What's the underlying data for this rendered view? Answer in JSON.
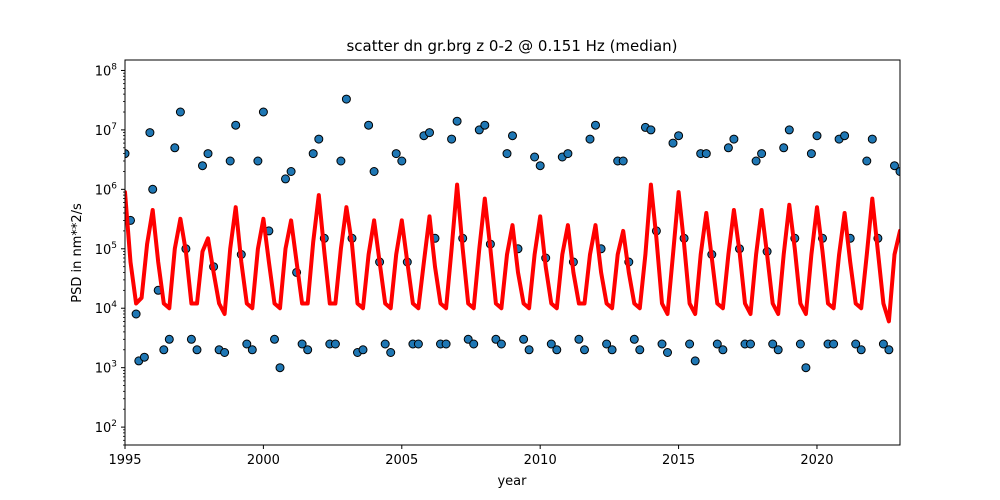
{
  "chart_data": {
    "type": "scatter",
    "title": "scatter dn gr.brg z 0-2 @ 0.151 Hz (median)",
    "xlabel": "year",
    "ylabel": "PSD in nm**2/s",
    "xlim": [
      1995,
      2023
    ],
    "ylim": [
      50,
      150000000
    ],
    "y_scale": "log",
    "grid": false,
    "x_ticks": [
      1995,
      2000,
      2005,
      2010,
      2015,
      2020
    ],
    "x_tick_labels": [
      "1995",
      "2000",
      "2005",
      "2010",
      "2015",
      "2020"
    ],
    "y_ticks": [
      100,
      1000,
      10000,
      100000,
      1000000,
      10000000,
      100000000
    ],
    "y_tick_labels": [
      {
        "base": "10",
        "exp": "2"
      },
      {
        "base": "10",
        "exp": "3"
      },
      {
        "base": "10",
        "exp": "4"
      },
      {
        "base": "10",
        "exp": "5"
      },
      {
        "base": "10",
        "exp": "6"
      },
      {
        "base": "10",
        "exp": "7"
      },
      {
        "base": "10",
        "exp": "8"
      }
    ],
    "series": [
      {
        "kind": "scatter",
        "color": "#1f77b4",
        "edge_color": "#000000",
        "x": [
          1995.0,
          1995.2,
          1995.4,
          1995.5,
          1995.7,
          1995.9,
          1996.0,
          1996.2,
          1996.4,
          1996.6,
          1996.8,
          1997.0,
          1997.2,
          1997.4,
          1997.6,
          1997.8,
          1998.0,
          1998.2,
          1998.4,
          1998.6,
          1998.8,
          1999.0,
          1999.2,
          1999.4,
          1999.6,
          1999.8,
          2000.0,
          2000.2,
          2000.4,
          2000.6,
          2000.8,
          2001.0,
          2001.2,
          2001.4,
          2001.6,
          2001.8,
          2002.0,
          2002.2,
          2002.4,
          2002.6,
          2002.8,
          2003.0,
          2003.2,
          2003.4,
          2003.6,
          2003.8,
          2004.0,
          2004.2,
          2004.4,
          2004.6,
          2004.8,
          2005.0,
          2005.2,
          2005.4,
          2005.6,
          2005.8,
          2006.0,
          2006.2,
          2006.4,
          2006.6,
          2006.8,
          2007.0,
          2007.2,
          2007.4,
          2007.6,
          2007.8,
          2008.0,
          2008.2,
          2008.4,
          2008.6,
          2008.8,
          2009.0,
          2009.2,
          2009.4,
          2009.6,
          2009.8,
          2010.0,
          2010.2,
          2010.4,
          2010.6,
          2010.8,
          2011.0,
          2011.2,
          2011.4,
          2011.6,
          2011.8,
          2012.0,
          2012.2,
          2012.4,
          2012.6,
          2012.8,
          2013.0,
          2013.2,
          2013.4,
          2013.6,
          2013.8,
          2014.0,
          2014.2,
          2014.4,
          2014.6,
          2014.8,
          2015.0,
          2015.2,
          2015.4,
          2015.6,
          2015.8,
          2016.0,
          2016.2,
          2016.4,
          2016.6,
          2016.8,
          2017.0,
          2017.2,
          2017.4,
          2017.6,
          2017.8,
          2018.0,
          2018.2,
          2018.4,
          2018.6,
          2018.8,
          2019.0,
          2019.2,
          2019.4,
          2019.6,
          2019.8,
          2020.0,
          2020.2,
          2020.4,
          2020.6,
          2020.8,
          2021.0,
          2021.2,
          2021.4,
          2021.6,
          2021.8,
          2022.0,
          2022.2,
          2022.4,
          2022.6,
          2022.8,
          2023.0
        ],
        "y": [
          4000000,
          300000,
          8000,
          1300,
          1500,
          9000000,
          1000000,
          20000,
          2000,
          3000,
          5000000,
          20000000,
          100000,
          3000,
          2000,
          2500000,
          4000000,
          50000,
          2000,
          1800,
          3000000,
          12000000,
          80000,
          2500,
          2000,
          3000000,
          20000000,
          200000,
          3000,
          1000,
          1500000,
          2000000,
          40000,
          2500,
          2000,
          4000000,
          7000000,
          150000,
          2500,
          2500,
          3000000,
          33000000,
          150000,
          1800,
          2000,
          12000000,
          2000000,
          60000,
          2500,
          1800,
          4000000,
          3000000,
          60000,
          2500,
          2500,
          8000000,
          9000000,
          150000,
          2500,
          2500,
          7000000,
          14000000,
          150000,
          3000,
          2500,
          10000000,
          12000000,
          120000,
          3000,
          2500,
          4000000,
          8000000,
          100000,
          3000,
          2000,
          3500000,
          2500000,
          70000,
          2500,
          2000,
          3500000,
          4000000,
          60000,
          3000,
          2000,
          7000000,
          12000000,
          100000,
          2500,
          2000,
          3000000,
          3000000,
          60000,
          3000,
          2000,
          11000000,
          10000000,
          200000,
          2500,
          1800,
          6000000,
          8000000,
          150000,
          2500,
          1300,
          4000000,
          4000000,
          80000,
          2500,
          2000,
          5000000,
          7000000,
          100000,
          2500,
          2500,
          3000000,
          4000000,
          90000,
          2500,
          2000,
          5000000,
          10000000,
          150000,
          2500,
          1000,
          4000000,
          8000000,
          150000,
          2500,
          2500,
          7000000,
          8000000,
          150000,
          2500,
          2000,
          3000000,
          7000000,
          150000,
          2500,
          2000,
          2500000,
          2000000
        ]
      },
      {
        "kind": "line",
        "name": "median",
        "color": "#ff0000",
        "x": [
          1995.0,
          1995.2,
          1995.4,
          1995.6,
          1995.8,
          1996.0,
          1996.2,
          1996.4,
          1996.6,
          1996.8,
          1997.0,
          1997.2,
          1997.4,
          1997.6,
          1997.8,
          1998.0,
          1998.2,
          1998.4,
          1998.6,
          1998.8,
          1999.0,
          1999.2,
          1999.4,
          1999.6,
          1999.8,
          2000.0,
          2000.2,
          2000.4,
          2000.6,
          2000.8,
          2001.0,
          2001.2,
          2001.4,
          2001.6,
          2001.8,
          2002.0,
          2002.2,
          2002.4,
          2002.6,
          2002.8,
          2003.0,
          2003.2,
          2003.4,
          2003.6,
          2003.8,
          2004.0,
          2004.2,
          2004.4,
          2004.6,
          2004.8,
          2005.0,
          2005.2,
          2005.4,
          2005.6,
          2005.8,
          2006.0,
          2006.2,
          2006.4,
          2006.6,
          2006.8,
          2007.0,
          2007.2,
          2007.4,
          2007.6,
          2007.8,
          2008.0,
          2008.2,
          2008.4,
          2008.6,
          2008.8,
          2009.0,
          2009.2,
          2009.4,
          2009.6,
          2009.8,
          2010.0,
          2010.2,
          2010.4,
          2010.6,
          2010.8,
          2011.0,
          2011.2,
          2011.4,
          2011.6,
          2011.8,
          2012.0,
          2012.2,
          2012.4,
          2012.6,
          2012.8,
          2013.0,
          2013.2,
          2013.4,
          2013.6,
          2013.8,
          2014.0,
          2014.2,
          2014.4,
          2014.6,
          2014.8,
          2015.0,
          2015.2,
          2015.4,
          2015.6,
          2015.8,
          2016.0,
          2016.2,
          2016.4,
          2016.6,
          2016.8,
          2017.0,
          2017.2,
          2017.4,
          2017.6,
          2017.8,
          2018.0,
          2018.2,
          2018.4,
          2018.6,
          2018.8,
          2019.0,
          2019.2,
          2019.4,
          2019.6,
          2019.8,
          2020.0,
          2020.2,
          2020.4,
          2020.6,
          2020.8,
          2021.0,
          2021.2,
          2021.4,
          2021.6,
          2021.8,
          2022.0,
          2022.2,
          2022.4,
          2022.6,
          2022.8,
          2023.0
        ],
        "y": [
          900000,
          60000,
          12000,
          15000,
          120000,
          450000,
          60000,
          12000,
          10000,
          100000,
          320000,
          90000,
          12000,
          12000,
          90000,
          150000,
          40000,
          12000,
          8000,
          100000,
          500000,
          60000,
          12000,
          10000,
          100000,
          320000,
          60000,
          12000,
          10000,
          100000,
          300000,
          60000,
          12000,
          12000,
          130000,
          800000,
          90000,
          12000,
          12000,
          100000,
          500000,
          120000,
          12000,
          10000,
          80000,
          300000,
          60000,
          12000,
          10000,
          80000,
          300000,
          60000,
          12000,
          10000,
          60000,
          350000,
          50000,
          12000,
          10000,
          100000,
          1200000,
          100000,
          12000,
          10000,
          100000,
          700000,
          100000,
          12000,
          10000,
          80000,
          250000,
          40000,
          12000,
          10000,
          80000,
          350000,
          50000,
          12000,
          10000,
          80000,
          250000,
          40000,
          12000,
          12000,
          80000,
          250000,
          40000,
          12000,
          10000,
          80000,
          200000,
          40000,
          12000,
          10000,
          80000,
          1200000,
          150000,
          12000,
          8000,
          80000,
          900000,
          120000,
          12000,
          8000,
          80000,
          400000,
          70000,
          12000,
          10000,
          80000,
          450000,
          90000,
          12000,
          8000,
          80000,
          450000,
          80000,
          12000,
          8000,
          80000,
          550000,
          100000,
          12000,
          8000,
          80000,
          500000,
          90000,
          12000,
          10000,
          80000,
          400000,
          60000,
          12000,
          10000,
          80000,
          700000,
          90000,
          12000,
          6000,
          80000,
          200000
        ]
      }
    ]
  }
}
